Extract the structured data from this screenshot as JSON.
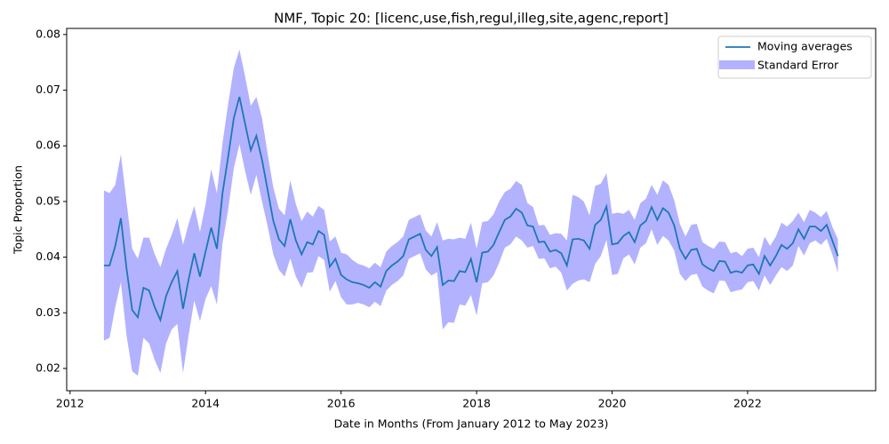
{
  "chart_data": {
    "type": "line",
    "title": "NMF, Topic 20: [licenc,use,fish,regul,illeg,site,agenc,report]",
    "x_label": "Date in Months (From January 2012 to May 2023)",
    "y_label": "Topic Proportion",
    "x": [
      2012.5,
      2012.583,
      2012.667,
      2012.75,
      2012.833,
      2012.917,
      2013,
      2013.083,
      2013.167,
      2013.25,
      2013.333,
      2013.417,
      2013.5,
      2013.583,
      2013.667,
      2013.75,
      2013.833,
      2013.917,
      2014,
      2014.083,
      2014.167,
      2014.25,
      2014.333,
      2014.417,
      2014.5,
      2014.583,
      2014.667,
      2014.75,
      2014.833,
      2014.917,
      2015,
      2015.083,
      2015.167,
      2015.25,
      2015.333,
      2015.417,
      2015.5,
      2015.583,
      2015.667,
      2015.75,
      2015.833,
      2015.917,
      2016,
      2016.083,
      2016.167,
      2016.25,
      2016.333,
      2016.417,
      2016.5,
      2016.583,
      2016.667,
      2016.75,
      2016.833,
      2016.917,
      2017,
      2017.083,
      2017.167,
      2017.25,
      2017.333,
      2017.417,
      2017.5,
      2017.583,
      2017.667,
      2017.75,
      2017.833,
      2017.917,
      2018,
      2018.083,
      2018.167,
      2018.25,
      2018.333,
      2018.417,
      2018.5,
      2018.583,
      2018.667,
      2018.75,
      2018.833,
      2018.917,
      2019,
      2019.083,
      2019.167,
      2019.25,
      2019.333,
      2019.417,
      2019.5,
      2019.583,
      2019.667,
      2019.75,
      2019.833,
      2019.917,
      2020,
      2020.083,
      2020.167,
      2020.25,
      2020.333,
      2020.417,
      2020.5,
      2020.583,
      2020.667,
      2020.75,
      2020.833,
      2020.917,
      2021,
      2021.083,
      2021.167,
      2021.25,
      2021.333,
      2021.417,
      2021.5,
      2021.583,
      2021.667,
      2021.75,
      2021.833,
      2021.917,
      2022,
      2022.083,
      2022.167,
      2022.25,
      2022.333,
      2022.417,
      2022.5,
      2022.583,
      2022.667,
      2022.75,
      2022.833,
      2022.917,
      2023,
      2023.083,
      2023.167,
      2023.25,
      2023.333
    ],
    "series": [
      {
        "name": "Moving averages",
        "color": "#1f77b4",
        "values": [
          0.0385,
          0.0385,
          0.042,
          0.047,
          0.038,
          0.0305,
          0.0292,
          0.0345,
          0.034,
          0.031,
          0.0287,
          0.033,
          0.0355,
          0.0375,
          0.0307,
          0.036,
          0.0407,
          0.0365,
          0.041,
          0.0453,
          0.0415,
          0.0515,
          0.058,
          0.065,
          0.0688,
          0.064,
          0.0592,
          0.0618,
          0.0575,
          0.052,
          0.0465,
          0.0432,
          0.042,
          0.0468,
          0.043,
          0.0405,
          0.0427,
          0.0423,
          0.0447,
          0.044,
          0.0383,
          0.0397,
          0.0368,
          0.036,
          0.0355,
          0.0353,
          0.035,
          0.0345,
          0.0355,
          0.0347,
          0.0375,
          0.0385,
          0.0392,
          0.0402,
          0.0432,
          0.0437,
          0.0442,
          0.0413,
          0.0402,
          0.0418,
          0.035,
          0.0358,
          0.0357,
          0.0375,
          0.0373,
          0.0397,
          0.0355,
          0.0408,
          0.041,
          0.0422,
          0.0445,
          0.0467,
          0.0473,
          0.0487,
          0.048,
          0.0457,
          0.0455,
          0.0427,
          0.0428,
          0.041,
          0.0413,
          0.0407,
          0.0385,
          0.0432,
          0.0433,
          0.043,
          0.0415,
          0.0458,
          0.0467,
          0.0491,
          0.0423,
          0.0425,
          0.0438,
          0.0445,
          0.0427,
          0.0457,
          0.0465,
          0.049,
          0.0467,
          0.0488,
          0.048,
          0.0457,
          0.0415,
          0.0397,
          0.0413,
          0.0415,
          0.0387,
          0.038,
          0.0375,
          0.0393,
          0.0392,
          0.0372,
          0.0375,
          0.0372,
          0.0385,
          0.0387,
          0.037,
          0.0402,
          0.0385,
          0.0402,
          0.0422,
          0.0415,
          0.0425,
          0.045,
          0.0433,
          0.0455,
          0.0455,
          0.0447,
          0.0458,
          0.043,
          0.0402
        ]
      },
      {
        "name": "Standard Error",
        "color": "#0000ff",
        "values": [
          0.0135,
          0.013,
          0.011,
          0.0115,
          0.012,
          0.011,
          0.0105,
          0.009,
          0.0095,
          0.0095,
          0.0095,
          0.0085,
          0.0085,
          0.0095,
          0.0115,
          0.01,
          0.0085,
          0.008,
          0.0085,
          0.0105,
          0.01,
          0.009,
          0.0095,
          0.009,
          0.0085,
          0.0085,
          0.008,
          0.007,
          0.0075,
          0.0065,
          0.006,
          0.0055,
          0.0055,
          0.007,
          0.0065,
          0.006,
          0.0055,
          0.005,
          0.0045,
          0.0045,
          0.0045,
          0.004,
          0.004,
          0.0045,
          0.004,
          0.0035,
          0.0035,
          0.0035,
          0.0035,
          0.0035,
          0.0035,
          0.0035,
          0.0035,
          0.0035,
          0.0035,
          0.0035,
          0.0035,
          0.0035,
          0.0035,
          0.0045,
          0.008,
          0.0075,
          0.0075,
          0.006,
          0.006,
          0.0065,
          0.006,
          0.0055,
          0.0055,
          0.0055,
          0.0055,
          0.005,
          0.005,
          0.005,
          0.005,
          0.004,
          0.0035,
          0.003,
          0.003,
          0.003,
          0.003,
          0.0035,
          0.0045,
          0.008,
          0.0075,
          0.007,
          0.006,
          0.007,
          0.0065,
          0.006,
          0.0055,
          0.0055,
          0.004,
          0.004,
          0.004,
          0.004,
          0.004,
          0.004,
          0.0045,
          0.005,
          0.005,
          0.0045,
          0.0045,
          0.004,
          0.0045,
          0.0045,
          0.004,
          0.004,
          0.004,
          0.0035,
          0.0035,
          0.0035,
          0.0035,
          0.003,
          0.003,
          0.003,
          0.003,
          0.0035,
          0.0035,
          0.0035,
          0.004,
          0.004,
          0.004,
          0.003,
          0.003,
          0.003,
          0.0025,
          0.0025,
          0.0025,
          0.0025,
          0.003
        ]
      }
    ],
    "xlim": [
      2011.95,
      2023.89
    ],
    "xticks": [
      2012,
      2014,
      2016,
      2018,
      2020,
      2022
    ],
    "ylim": [
      0.016,
      0.0811
    ],
    "yticks": [
      0.02,
      0.03,
      0.04,
      0.05,
      0.06,
      0.07,
      0.08
    ],
    "grid": false,
    "legend": "upper right"
  }
}
